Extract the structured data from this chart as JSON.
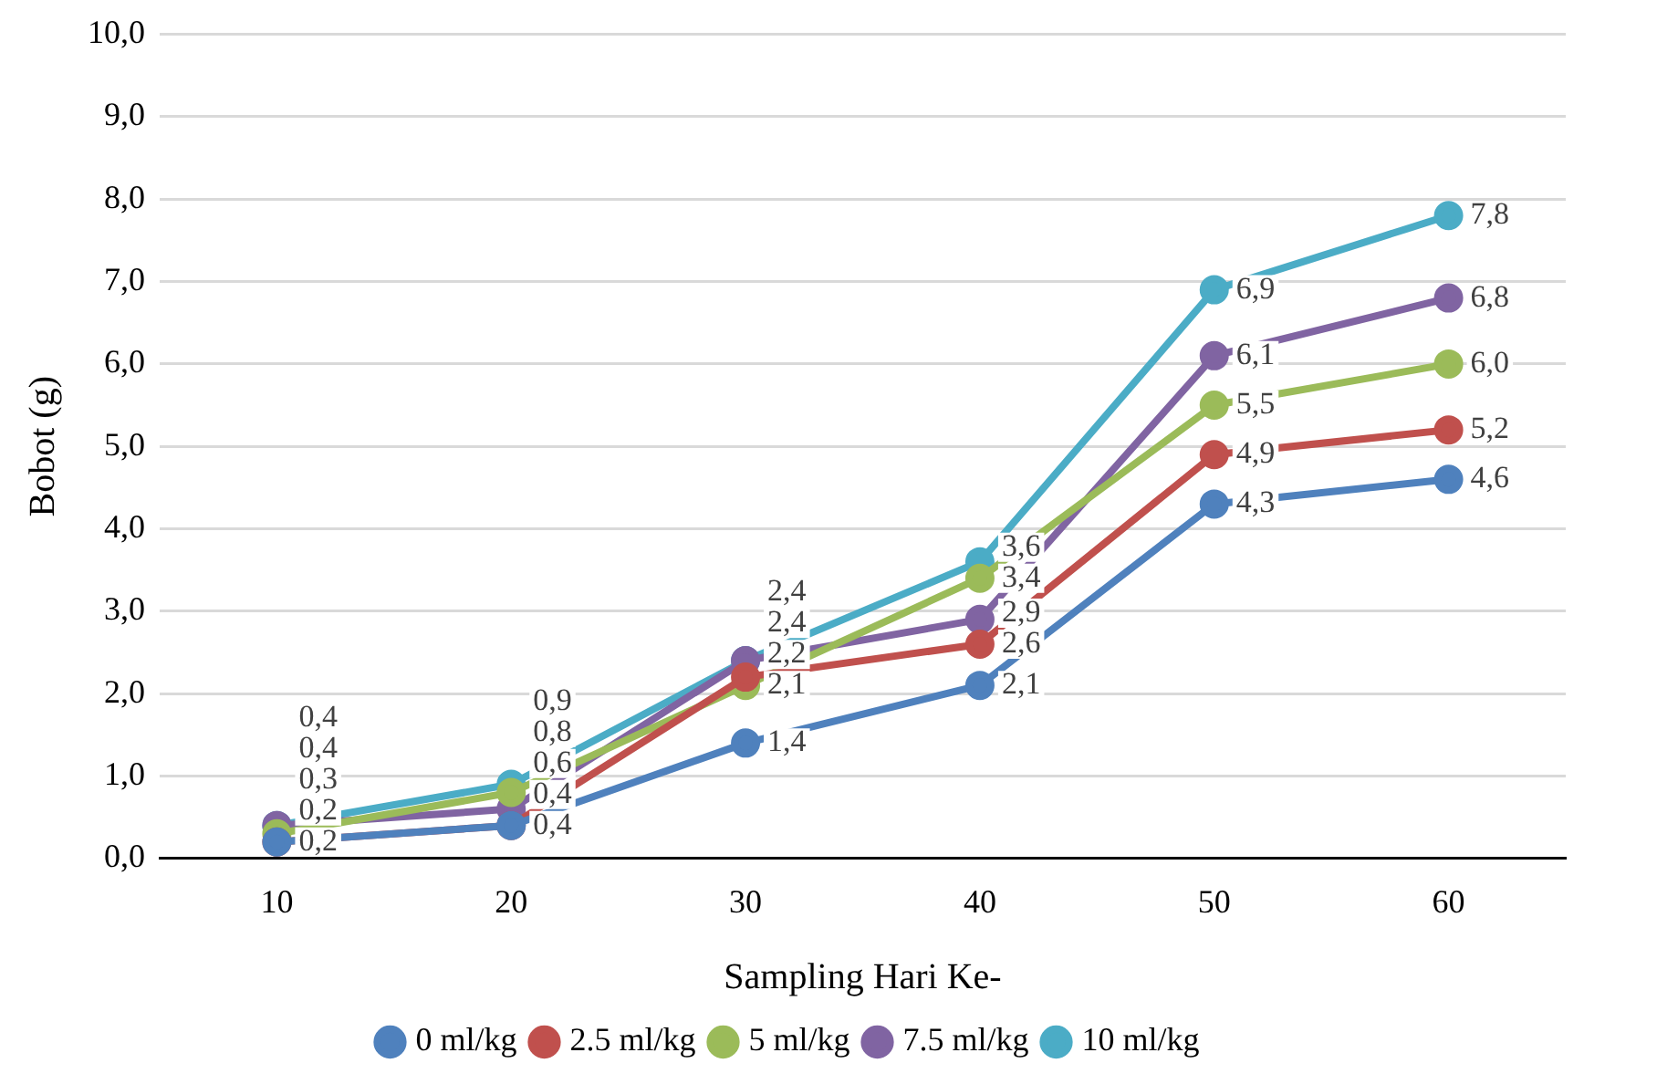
{
  "chart_data": {
    "type": "line",
    "xlabel": "Sampling Hari Ke-",
    "ylabel": "Bobot (g)",
    "categories": [
      "10",
      "20",
      "30",
      "40",
      "50",
      "60"
    ],
    "ylim": [
      0,
      10
    ],
    "yticks": [
      {
        "value": 0,
        "label": "0,0"
      },
      {
        "value": 1,
        "label": "1,0"
      },
      {
        "value": 2,
        "label": "2,0"
      },
      {
        "value": 3,
        "label": "3,0"
      },
      {
        "value": 4,
        "label": "4,0"
      },
      {
        "value": 5,
        "label": "5,0"
      },
      {
        "value": 6,
        "label": "6,0"
      },
      {
        "value": 7,
        "label": "7,0"
      },
      {
        "value": 8,
        "label": "8,0"
      },
      {
        "value": 9,
        "label": "9,0"
      },
      {
        "value": 10,
        "label": "10,0"
      }
    ],
    "grid": "y",
    "legend": "bottom",
    "marker": "circle",
    "line_style": "solid",
    "series": [
      {
        "name": "0 ml/kg",
        "color": "#4f81bd",
        "values": [
          0.2,
          0.4,
          1.4,
          2.1,
          4.3,
          4.6
        ],
        "value_labels": [
          "0,2",
          "0,4",
          "1,4",
          "2,1",
          "4,3",
          "4,6"
        ]
      },
      {
        "name": "2.5 ml/kg",
        "color": "#c0504d",
        "values": [
          0.2,
          0.4,
          2.2,
          2.6,
          4.9,
          5.2
        ],
        "value_labels": [
          "0,2",
          "0,4",
          "2,2",
          "2,6",
          "4,9",
          "5,2"
        ]
      },
      {
        "name": "5 ml/kg",
        "color": "#9bbb59",
        "values": [
          0.3,
          0.8,
          2.1,
          3.4,
          5.5,
          6.0
        ],
        "value_labels": [
          "0,3",
          "0,8",
          "2,1",
          "3,4",
          "5,5",
          "6,0"
        ]
      },
      {
        "name": "7.5 ml/kg",
        "color": "#8064a2",
        "values": [
          0.4,
          0.6,
          2.4,
          2.9,
          6.1,
          6.8
        ],
        "value_labels": [
          "0,4",
          "0,6",
          "2,4",
          "2,9",
          "6,1",
          "6,8"
        ]
      },
      {
        "name": "10 ml/kg",
        "color": "#4bacc6",
        "values": [
          0.4,
          0.9,
          2.4,
          3.6,
          6.9,
          7.8
        ],
        "value_labels": [
          "0,4",
          "0,9",
          "2,4",
          "3,6",
          "6,9",
          "7,8"
        ]
      }
    ]
  }
}
